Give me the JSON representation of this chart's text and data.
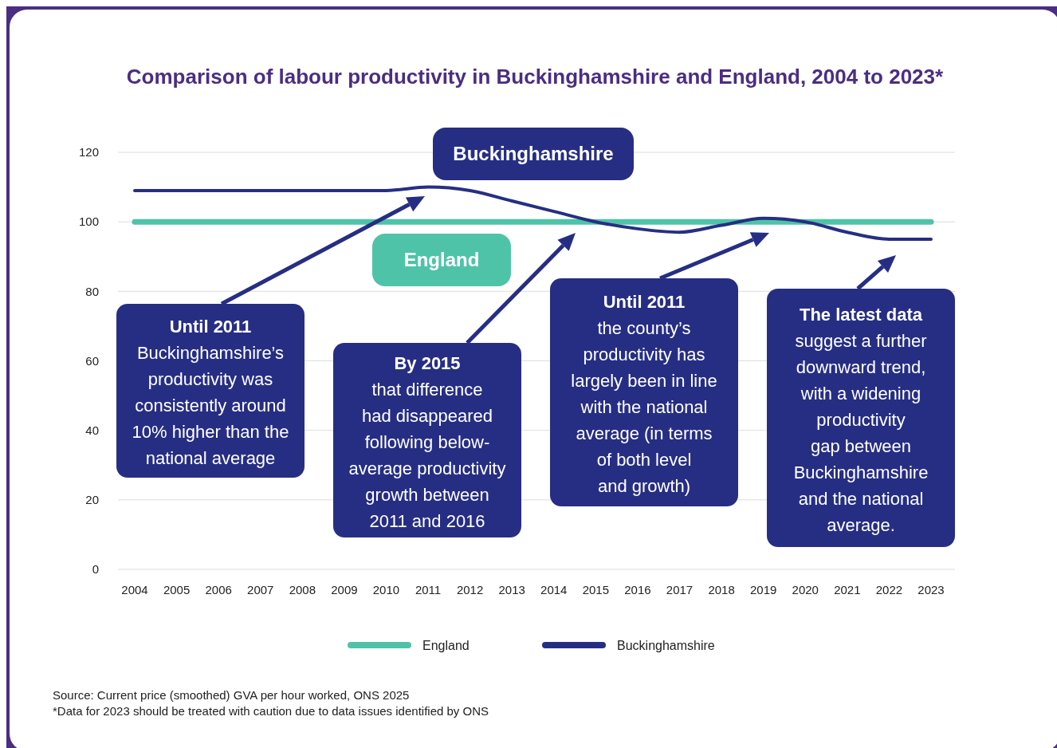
{
  "chart_data": {
    "type": "line",
    "title": "Comparison of labour productivity in Buckinghamshire and England, 2004 to 2023*",
    "categories": [
      "2004",
      "2005",
      "2006",
      "2007",
      "2008",
      "2009",
      "2010",
      "2011",
      "2012",
      "2013",
      "2014",
      "2015",
      "2016",
      "2017",
      "2018",
      "2019",
      "2020",
      "2021",
      "2022",
      "2023"
    ],
    "series": [
      {
        "name": "England",
        "color": "#4fc3a8",
        "values": [
          100,
          100,
          100,
          100,
          100,
          100,
          100,
          100,
          100,
          100,
          100,
          100,
          100,
          100,
          100,
          100,
          100,
          100,
          100,
          100
        ]
      },
      {
        "name": "Buckinghamshire",
        "color": "#262e84",
        "values": [
          109,
          109,
          109,
          109,
          109,
          109,
          109,
          110,
          109,
          106,
          103,
          100,
          98,
          97,
          99,
          101,
          100,
          97,
          95,
          95
        ]
      }
    ],
    "ylim": [
      0,
      120
    ],
    "yticks": [
      0,
      20,
      40,
      60,
      80,
      100,
      120
    ],
    "grid": "y",
    "legend": "bottom",
    "marker": "none",
    "line_style": "solid",
    "annotations": [
      "Until 2011\nBuckinghamshire’s\nproductivity was\nconsistently around\n10% higher than the\nnational average",
      "By 2015\nthat difference\nhad disappeared\nfollowing below-\naverage productivity\ngrowth between\n2011 and 2016",
      "Until 2011\nthe county’s\nproductivity has\nlargely been in line\nwith the national\naverage (in terms\nof both level\nand growth)",
      "The latest data\nsuggest a further\ndownward trend,\nwith a widening\nproductivity\ngap between\nBuckinghamshire\nand the national\naverage.",
      "Source: Current price (smoothed) GVA per hour worked, ONS 2025",
      "*Data for 2023 should be treated with caution due to data issues identified by ONS"
    ]
  }
}
